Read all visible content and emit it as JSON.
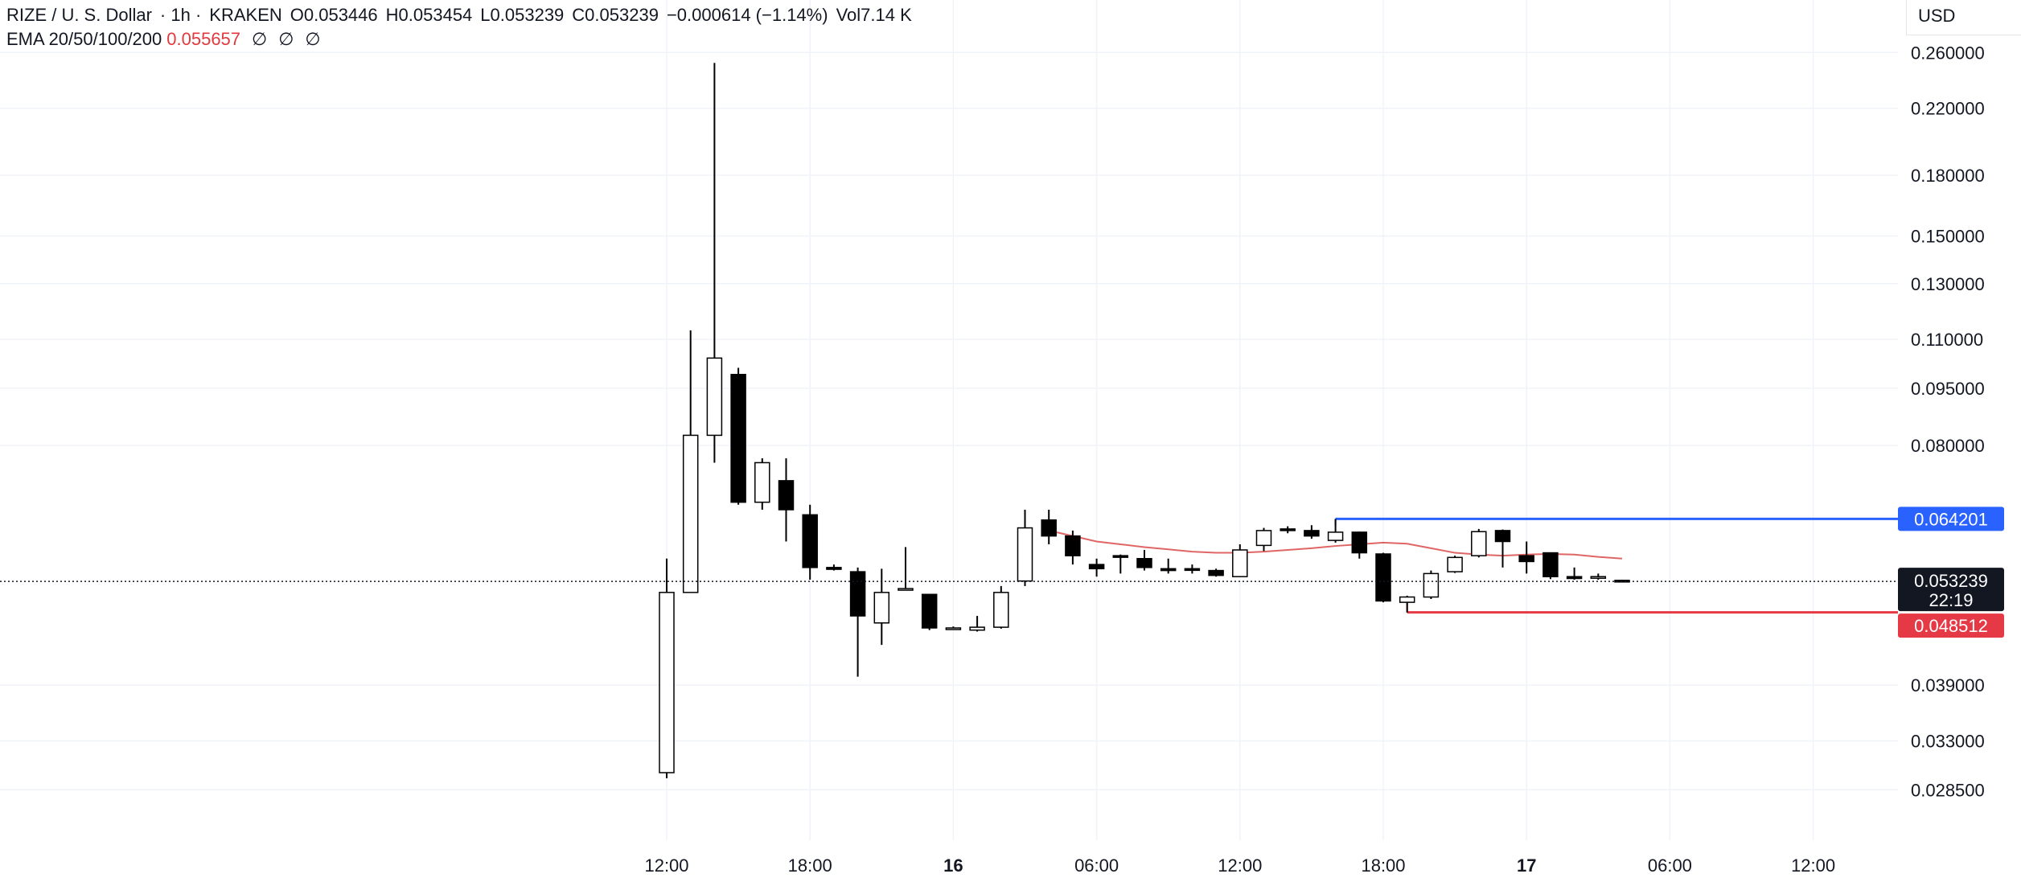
{
  "header": {
    "symbol": "RIZE / U. S. Dollar",
    "interval": "· 1h ·",
    "exchange": "KRAKEN",
    "open": "O0.053446",
    "high": "H0.053454",
    "low": "L0.053239",
    "close": "C0.053239",
    "change": "−0.000614 (−1.14%)",
    "volume": "Vol7.14 K"
  },
  "indicator": {
    "label": "EMA 20/50/100/200",
    "value": "0.055657",
    "null_symbols": [
      "∅",
      "∅",
      "∅"
    ]
  },
  "price_scale": {
    "currency": "USD",
    "ticks": [
      "0.260000",
      "0.220000",
      "0.180000",
      "0.150000",
      "0.130000",
      "0.110000",
      "0.095000",
      "0.080000",
      "0.039000",
      "0.033000",
      "0.028500"
    ]
  },
  "price_labels": {
    "upper": "0.064201",
    "last": "0.053239",
    "countdown": "22:19",
    "lower": "0.048512"
  },
  "colors": {
    "up_candle": "#ffffff",
    "down_candle": "#000000",
    "ema": "#e06666",
    "upper_line": "#2962ff",
    "lower_line": "#e53946"
  },
  "chart_data": {
    "type": "candlestick",
    "y_scale": "log",
    "ylim": [
      0.0245,
      0.29
    ],
    "x_ticks": [
      "12:00",
      "18:00",
      "16",
      "06:00",
      "12:00",
      "18:00",
      "17",
      "06:00",
      "12:00"
    ],
    "candles": [
      {
        "o": 0.03,
        "h": 0.057,
        "l": 0.0295,
        "c": 0.0515
      },
      {
        "o": 0.0515,
        "h": 0.113,
        "l": 0.0515,
        "c": 0.0825
      },
      {
        "o": 0.0825,
        "h": 0.252,
        "l": 0.076,
        "c": 0.104
      },
      {
        "o": 0.099,
        "h": 0.101,
        "l": 0.067,
        "c": 0.0675
      },
      {
        "o": 0.0675,
        "h": 0.077,
        "l": 0.066,
        "c": 0.076
      },
      {
        "o": 0.072,
        "h": 0.077,
        "l": 0.06,
        "c": 0.066
      },
      {
        "o": 0.065,
        "h": 0.067,
        "l": 0.0535,
        "c": 0.0555
      },
      {
        "o": 0.0555,
        "h": 0.056,
        "l": 0.055,
        "c": 0.0552
      },
      {
        "o": 0.0548,
        "h": 0.0555,
        "l": 0.04,
        "c": 0.048
      },
      {
        "o": 0.047,
        "h": 0.0553,
        "l": 0.044,
        "c": 0.0515
      },
      {
        "o": 0.052,
        "h": 0.059,
        "l": 0.0518,
        "c": 0.0521
      },
      {
        "o": 0.0512,
        "h": 0.0512,
        "l": 0.046,
        "c": 0.0463
      },
      {
        "o": 0.0463,
        "h": 0.0465,
        "l": 0.0461,
        "c": 0.0463
      },
      {
        "o": 0.046,
        "h": 0.048,
        "l": 0.0458,
        "c": 0.0464
      },
      {
        "o": 0.0464,
        "h": 0.0525,
        "l": 0.0462,
        "c": 0.0515
      },
      {
        "o": 0.0533,
        "h": 0.066,
        "l": 0.0525,
        "c": 0.0625
      },
      {
        "o": 0.064,
        "h": 0.066,
        "l": 0.0595,
        "c": 0.061
      },
      {
        "o": 0.061,
        "h": 0.062,
        "l": 0.056,
        "c": 0.0575
      },
      {
        "o": 0.056,
        "h": 0.057,
        "l": 0.054,
        "c": 0.0553
      },
      {
        "o": 0.0575,
        "h": 0.0577,
        "l": 0.0545,
        "c": 0.0574
      },
      {
        "o": 0.057,
        "h": 0.0585,
        "l": 0.055,
        "c": 0.0555
      },
      {
        "o": 0.0553,
        "h": 0.057,
        "l": 0.0545,
        "c": 0.055
      },
      {
        "o": 0.0553,
        "h": 0.056,
        "l": 0.0545,
        "c": 0.0551
      },
      {
        "o": 0.055,
        "h": 0.0553,
        "l": 0.054,
        "c": 0.0542
      },
      {
        "o": 0.054,
        "h": 0.0595,
        "l": 0.054,
        "c": 0.0585
      },
      {
        "o": 0.0593,
        "h": 0.0625,
        "l": 0.0583,
        "c": 0.062
      },
      {
        "o": 0.0623,
        "h": 0.0628,
        "l": 0.0615,
        "c": 0.062
      },
      {
        "o": 0.062,
        "h": 0.063,
        "l": 0.0605,
        "c": 0.061
      },
      {
        "o": 0.0602,
        "h": 0.0642,
        "l": 0.0598,
        "c": 0.0617
      },
      {
        "o": 0.0617,
        "h": 0.0618,
        "l": 0.057,
        "c": 0.058
      },
      {
        "o": 0.0578,
        "h": 0.058,
        "l": 0.05,
        "c": 0.0502
      },
      {
        "o": 0.05,
        "h": 0.051,
        "l": 0.0485,
        "c": 0.0508
      },
      {
        "o": 0.0508,
        "h": 0.055,
        "l": 0.0505,
        "c": 0.0545
      },
      {
        "o": 0.0548,
        "h": 0.0575,
        "l": 0.0546,
        "c": 0.0572
      },
      {
        "o": 0.0575,
        "h": 0.0623,
        "l": 0.0572,
        "c": 0.0618
      },
      {
        "o": 0.062,
        "h": 0.0622,
        "l": 0.0555,
        "c": 0.06
      },
      {
        "o": 0.0575,
        "h": 0.06,
        "l": 0.0545,
        "c": 0.0565
      },
      {
        "o": 0.058,
        "h": 0.058,
        "l": 0.0536,
        "c": 0.054
      },
      {
        "o": 0.054,
        "h": 0.0555,
        "l": 0.0535,
        "c": 0.0537
      },
      {
        "o": 0.0538,
        "h": 0.0545,
        "l": 0.0535,
        "c": 0.054
      },
      {
        "o": 0.0534,
        "h": 0.0535,
        "l": 0.0532,
        "c": 0.0532
      }
    ],
    "ema": [
      0.062,
      0.061,
      0.06,
      0.0595,
      0.059,
      0.0586,
      0.0582,
      0.058,
      0.058,
      0.0582,
      0.0585,
      0.0588,
      0.0592,
      0.0595,
      0.0598,
      0.0596,
      0.0588,
      0.058,
      0.0577,
      0.0575,
      0.0577,
      0.0578,
      0.0577,
      0.0573,
      0.057
    ],
    "ema_start_index": 16
  }
}
